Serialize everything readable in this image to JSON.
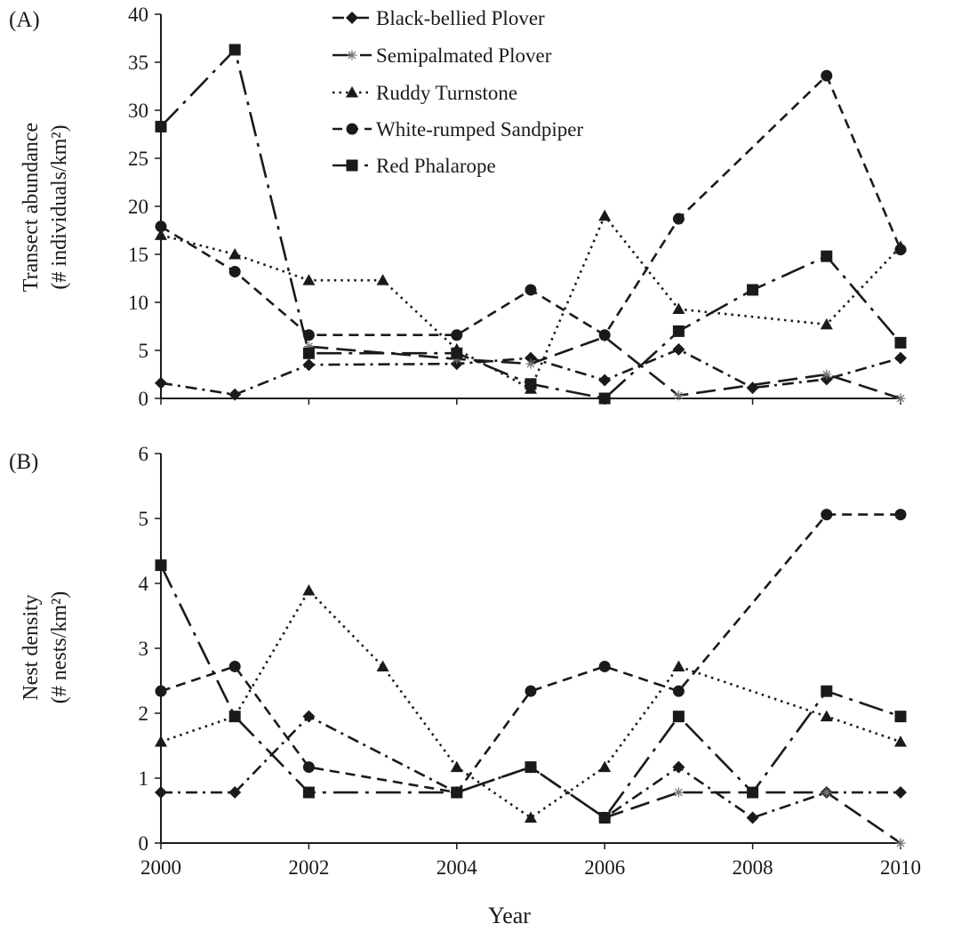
{
  "figure": {
    "xlabel": "Year",
    "x_ticks": [
      "2000",
      "2002",
      "2004",
      "2006",
      "2008",
      "2010"
    ],
    "colors": {
      "ink": "#1a1a1a",
      "background": "#ffffff"
    }
  },
  "legend": [
    {
      "name": "Black-bellied Plover",
      "marker": "diamond",
      "dash": "dash-dot"
    },
    {
      "name": "Semipalmated Plover",
      "marker": "asterisk",
      "dash": "long-dash"
    },
    {
      "name": "Ruddy Turnstone",
      "marker": "triangle",
      "dash": "dotted"
    },
    {
      "name": "White-rumped Sandpiper",
      "marker": "circle",
      "dash": "dashed"
    },
    {
      "name": "Red Phalarope",
      "marker": "square",
      "dash": "long-dash-dot"
    }
  ],
  "chart_data": [
    {
      "type": "line",
      "panel_label": "(A)",
      "ylabel_line1": "Transect abundance",
      "ylabel_line2": "(# individuals/km²)",
      "ylim": [
        0,
        40
      ],
      "xlim": [
        2000,
        2010
      ],
      "y_ticks": [
        "0",
        "5",
        "10",
        "15",
        "20",
        "25",
        "30",
        "35",
        "40"
      ],
      "series": [
        {
          "name": "Black-bellied Plover",
          "x": [
            2000,
            2001,
            2002,
            2004,
            2005,
            2006,
            2007,
            2008,
            2009,
            2010
          ],
          "y": [
            1.6,
            0.4,
            3.5,
            3.6,
            4.2,
            1.9,
            5.1,
            1.1,
            2.0,
            4.2
          ]
        },
        {
          "name": "Semipalmated Plover",
          "x": [
            2002,
            2004,
            2005,
            2006,
            2007,
            2009,
            2010
          ],
          "y": [
            5.4,
            4.1,
            3.6,
            6.4,
            0.3,
            2.5,
            0.0
          ]
        },
        {
          "name": "Ruddy Turnstone",
          "x": [
            2000,
            2001,
            2002,
            2003,
            2004,
            2005,
            2006,
            2007,
            2009,
            2010
          ],
          "y": [
            17.0,
            15.0,
            12.3,
            12.3,
            5.1,
            1.0,
            19.0,
            9.3,
            7.7,
            15.8
          ]
        },
        {
          "name": "White-rumped Sandpiper",
          "x": [
            2000,
            2001,
            2002,
            2004,
            2005,
            2006,
            2007,
            2009,
            2010
          ],
          "y": [
            17.9,
            13.2,
            6.6,
            6.6,
            11.3,
            6.6,
            18.7,
            33.6,
            15.5
          ]
        },
        {
          "name": "Red Phalarope",
          "x": [
            2000,
            2001,
            2002,
            2004,
            2005,
            2006,
            2007,
            2008,
            2009,
            2010
          ],
          "y": [
            28.3,
            36.3,
            4.7,
            4.7,
            1.5,
            0.0,
            7.0,
            11.3,
            14.8,
            5.8
          ]
        }
      ]
    },
    {
      "type": "line",
      "panel_label": "(B)",
      "ylabel_line1": "Nest density",
      "ylabel_line2": "(# nests/km²)",
      "ylim": [
        0,
        6
      ],
      "xlim": [
        2000,
        2010
      ],
      "y_ticks": [
        "0",
        "1",
        "2",
        "3",
        "4",
        "5",
        "6"
      ],
      "series": [
        {
          "name": "Black-bellied Plover",
          "x": [
            2000,
            2001,
            2002,
            2004,
            2005,
            2006,
            2007,
            2008,
            2009,
            2010
          ],
          "y": [
            0.78,
            0.78,
            1.95,
            0.78,
            1.17,
            0.39,
            1.17,
            0.39,
            0.78,
            0.78
          ]
        },
        {
          "name": "Semipalmated Plover",
          "x": [
            2006,
            2007,
            2008,
            2009,
            2010
          ],
          "y": [
            0.39,
            0.78,
            0.78,
            0.78,
            0.0
          ]
        },
        {
          "name": "Ruddy Turnstone",
          "x": [
            2000,
            2001,
            2002,
            2003,
            2004,
            2005,
            2006,
            2007,
            2009,
            2010
          ],
          "y": [
            1.56,
            1.95,
            3.89,
            2.72,
            1.17,
            0.39,
            1.17,
            2.72,
            1.95,
            1.56
          ]
        },
        {
          "name": "White-rumped Sandpiper",
          "x": [
            2000,
            2001,
            2002,
            2004,
            2005,
            2006,
            2007,
            2009,
            2010
          ],
          "y": [
            2.34,
            2.72,
            1.17,
            0.78,
            2.34,
            2.72,
            2.34,
            5.06,
            5.06
          ]
        },
        {
          "name": "Red Phalarope",
          "x": [
            2000,
            2001,
            2002,
            2004,
            2005,
            2006,
            2007,
            2008,
            2009,
            2010
          ],
          "y": [
            4.28,
            1.95,
            0.78,
            0.78,
            1.17,
            0.39,
            1.95,
            0.78,
            2.34,
            1.95
          ]
        }
      ]
    }
  ]
}
